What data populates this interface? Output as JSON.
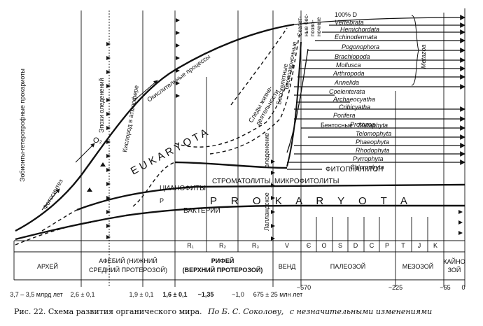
{
  "axis": {
    "ages": [
      "3,7 – 3,5 млрд лет",
      "2,6 ± 0,1",
      "1,9 ± 0,1",
      "1,6 ± 0,1",
      "~1,35",
      "~1,0",
      "675 ± 25 млн лет",
      "~570",
      "~225",
      "~65",
      "0"
    ]
  },
  "eras": {
    "archey": "АРХЕЙ",
    "afebiy_1": "АФЕБИЙ (НИЖНИЙ",
    "afebiy_2": "СРЕДНИЙ ПРОТЕРОЗОЙ)",
    "rifey_1": "РИФЕЙ",
    "rifey_2": "(ВЕРХНИЙ ПРОТЕРОЗОЙ)",
    "vend": "ВЕНД",
    "paleozoy": "ПАЛЕОЗОЙ",
    "mezozoy": "МЕЗОЗОЙ",
    "kaynozoy_1": "КАЙНО",
    "kaynozoy_2": "ЗОЙ"
  },
  "periods": [
    "R₁",
    "R₂",
    "R₃",
    "V",
    "Є",
    "O",
    "S",
    "D",
    "C",
    "P",
    "T",
    "J",
    "K"
  ],
  "labels": {
    "eukaryota": "E U K A R Y O T A",
    "prokaryota": "P R O K A R Y O T A",
    "bakterii": "БАКТЕРИИ",
    "cianofity": "ЦИАНОФИТЫ",
    "stromatolity": "СТРОМАТОЛИТЫ, МИКРОФИТОЛИТЫ",
    "fitoplankton": "ФИТОПЛАНКТОН",
    "fotosintez": "Фотосинтез",
    "o2": "O₂",
    "kislorod": "Кислород в атмосфере",
    "okislitelnye": "Окислительные процессы",
    "epokhi": "Эпохи оледенений",
    "anaerob": "Эобионты-гетеротрофные прокариоты",
    "sledy_1": "Следы жизне-",
    "sledy_2": "деятельности",
    "bes_1": "Бесскелетные",
    "bes_2": "беспозвоночные",
    "skel_1": "Скелет-",
    "skel_2": "ные бес-",
    "skel_3": "позво-",
    "skel_4": "ночные",
    "laplandskoe": "Лапландское",
    "oledenenie": "оледенение",
    "p_small": "P",
    "bentosnye": "Бентосные",
    "metazoa": "Metazoa",
    "hundred": "100% D"
  },
  "taxa": {
    "animals": [
      "Vertebrata",
      "Hemichordata",
      "Echinodermata",
      "Pogonophora",
      "Brachiopoda",
      "Mollusca",
      "Arthropoda",
      "Annelida",
      "Coelenterata",
      "Archaeocyatha",
      "Cribicyatha",
      "Porifera"
    ],
    "protozoa": "Protozoa",
    "plants": [
      "Telomophyta",
      "Metaphyta",
      "Phaeophyta",
      "Rhodophyta",
      "Pyrrophyta",
      "Chlorophyta"
    ]
  },
  "caption": {
    "main": "Рис. 22. Схема развития органического мира.",
    "source": "По Б. С. Соколову,",
    "note": "с незначительными изменениями"
  }
}
